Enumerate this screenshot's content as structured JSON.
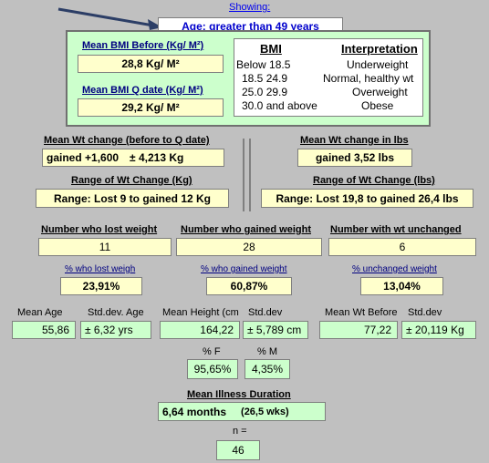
{
  "showing_label": "Showing:",
  "filter_value": "Age: greater than 49 years",
  "bmi_box": {
    "before_label": "Mean BMI Before (Kg/ M²)",
    "before_value": "28,8 Kg/ M²",
    "qdate_label": "Mean BMI Q date (Kg/ M²)",
    "qdate_value": "29,2 Kg/ M²"
  },
  "bmi_table": {
    "col_bmi": "BMI",
    "col_interp": "Interpretation",
    "rows": [
      {
        "range": "Below 18.5",
        "meaning": "Underweight"
      },
      {
        "range": "18.5  24.9",
        "meaning": "Normal, healthy wt"
      },
      {
        "range": "25.0  29.9",
        "meaning": "Overweight"
      },
      {
        "range": "30.0 and above",
        "meaning": "Obese"
      }
    ]
  },
  "wt_change": {
    "label": "Mean Wt change (before to Q date)",
    "value": "gained +1,600",
    "sd": "± 4,213 Kg"
  },
  "wt_change_lbs": {
    "label": "Mean Wt change in lbs",
    "value": "gained 3,52 lbs"
  },
  "range_kg": {
    "label": "Range of Wt Change (Kg)",
    "value": "Range: Lost 9 to gained 12 Kg"
  },
  "range_lbs": {
    "label": "Range of Wt Change (lbs)",
    "value": "Range: Lost 19,8 to gained 26,4 lbs"
  },
  "counts": {
    "lost_label": "Number who lost weight",
    "lost_value": "11",
    "gained_label": "Number who gained weight",
    "gained_value": "28",
    "unchanged_label": "Number with wt unchanged",
    "unchanged_value": "6"
  },
  "percents": {
    "lost_label": "% who lost weigh",
    "lost_value": "23,91%",
    "gained_label": "% who gained weight",
    "gained_value": "60,87%",
    "unchanged_label": "% unchanged weight",
    "unchanged_value": "13,04%"
  },
  "stats": {
    "age_label": "Mean Age",
    "age_value": "55,86",
    "age_sd_label": "Std.dev. Age",
    "age_sd_value": "± 6,32 yrs",
    "height_label": "Mean Height (cm",
    "height_value": "164,22",
    "height_sd_label": "Std.dev",
    "height_sd_value": "± 5,789 cm",
    "wt_label": "Mean Wt Before",
    "wt_value": "77,22",
    "wt_sd_label": "Std.dev",
    "wt_sd_value": "± 20,119 Kg"
  },
  "gender": {
    "f_label": "% F",
    "f_value": "95,65%",
    "m_label": "% M",
    "m_value": "4,35%"
  },
  "illness": {
    "label": "Mean Illness Duration",
    "months": "6,64 months",
    "weeks": "(26,5 wks)"
  },
  "n": {
    "label": "n =",
    "value": "46"
  },
  "colors": {
    "background": "#c0c0c0",
    "yellow_cell": "#ffffcc",
    "green_cell": "#ccffcc",
    "header_navy": "#000080"
  }
}
